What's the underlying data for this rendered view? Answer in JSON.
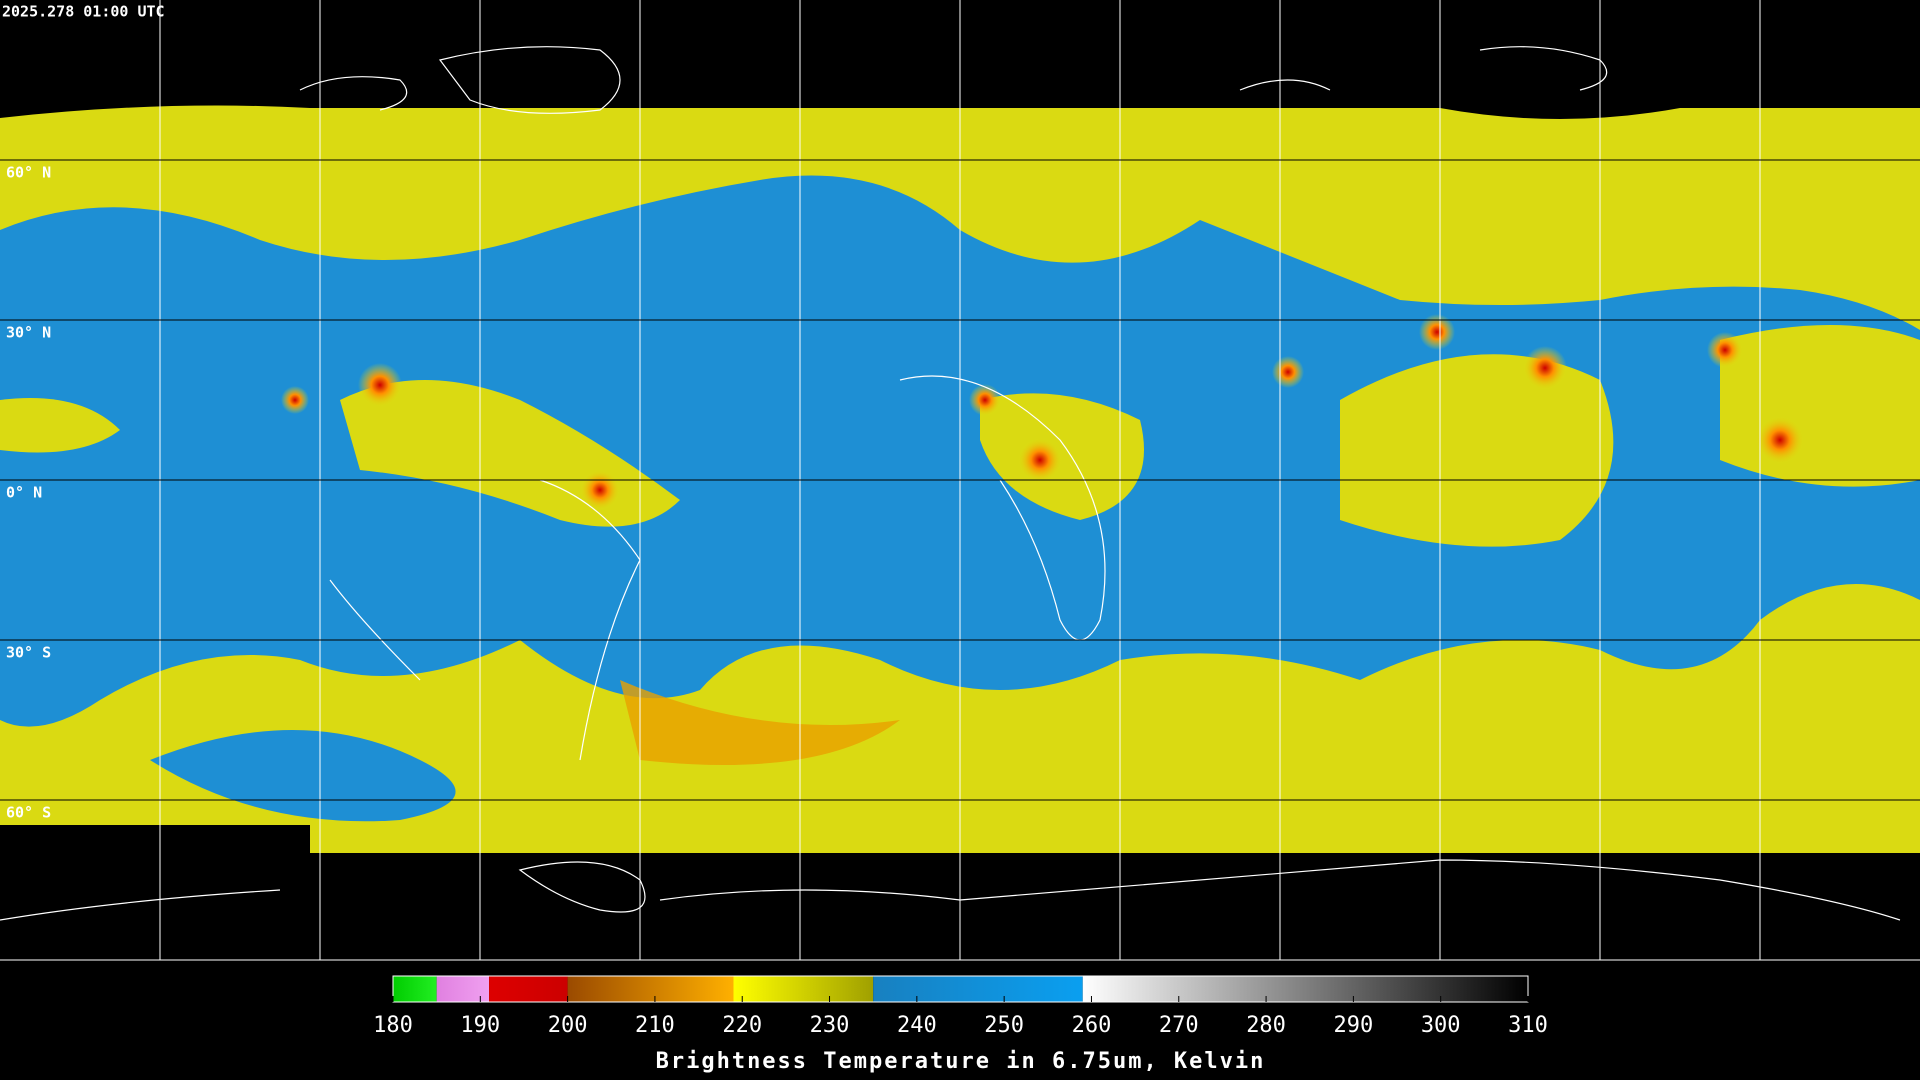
{
  "timestamp": "2025.278 01:00 UTC",
  "latitudes": [
    {
      "value": 60,
      "label": "60° N"
    },
    {
      "value": 30,
      "label": "30° N"
    },
    {
      "value": 0,
      "label": "0° N"
    },
    {
      "value": -30,
      "label": "30° S"
    },
    {
      "value": -60,
      "label": "60° S"
    }
  ],
  "colorbar": {
    "title": "Brightness Temperature in 6.75um, Kelvin",
    "range": [
      180,
      310
    ],
    "ticks": [
      180,
      190,
      200,
      210,
      220,
      230,
      240,
      250,
      260,
      270,
      280,
      290,
      300,
      310
    ],
    "segments": [
      {
        "from": 180,
        "to": 185,
        "from_color": "#00cc00",
        "to_color": "#22ee22"
      },
      {
        "from": 185,
        "to": 191,
        "from_color": "#e080e0",
        "to_color": "#f0a0f0"
      },
      {
        "from": 191,
        "to": 200,
        "from_color": "#dd0000",
        "to_color": "#cc0000"
      },
      {
        "from": 200,
        "to": 219,
        "from_color": "#9a4a00",
        "to_color": "#ffb000"
      },
      {
        "from": 219,
        "to": 235,
        "from_color": "#ffff00",
        "to_color": "#a0a000"
      },
      {
        "from": 235,
        "to": 259,
        "from_color": "#1880c0",
        "to_color": "#0a9ff0"
      },
      {
        "from": 259,
        "to": 310,
        "from_color": "#ffffff",
        "to_color": "#000000"
      }
    ]
  }
}
